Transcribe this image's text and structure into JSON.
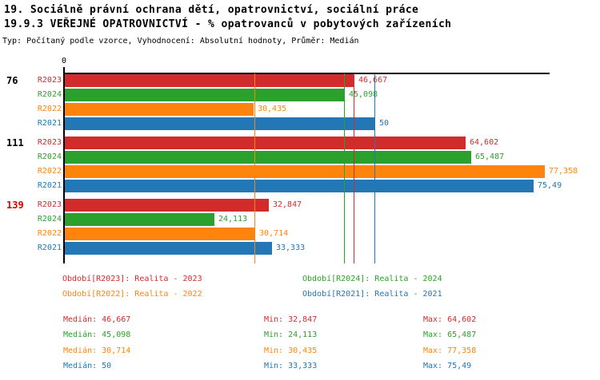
{
  "header": {
    "title_line1": "19. Sociálně právní ochrana dětí, opatrovnictví, sociální práce",
    "title_line2": "19.9.3 VEŘEJNÉ OPATROVNICTVÍ - % opatrovanců v pobytových zařízeních",
    "subtitle": "Typ: Počítaný podle vzorce, Vyhodnocení: Absolutní hodnoty, Průměr: Medián"
  },
  "colors": {
    "R2023": "#d22b2b",
    "R2024": "#2ca02c",
    "R2022": "#ff840e",
    "R2021": "#2277b4",
    "axis": "#000000",
    "group_label_default": "#000000",
    "group_label_highlight": "#dd0000"
  },
  "chart_data": {
    "type": "bar",
    "orientation": "horizontal",
    "title": "19.9.3 VEŘEJNÉ OPATROVNICTVÍ - % opatrovanců v pobytových zařízeních",
    "axis": {
      "origin_label": "0",
      "min": 0,
      "max": 78.2,
      "grid": false
    },
    "series_order": [
      "R2023",
      "R2024",
      "R2022",
      "R2021"
    ],
    "groups": [
      {
        "label": "76",
        "highlight": false,
        "bars": [
          {
            "series": "R2023",
            "value": 46.667,
            "label": "46,667"
          },
          {
            "series": "R2024",
            "value": 45.098,
            "label": "45,098"
          },
          {
            "series": "R2022",
            "value": 30.435,
            "label": "30,435"
          },
          {
            "series": "R2021",
            "value": 50,
            "label": "50"
          }
        ]
      },
      {
        "label": "111",
        "highlight": false,
        "bars": [
          {
            "series": "R2023",
            "value": 64.602,
            "label": "64,602"
          },
          {
            "series": "R2024",
            "value": 65.487,
            "label": "65,487"
          },
          {
            "series": "R2022",
            "value": 77.358,
            "label": "77,358"
          },
          {
            "series": "R2021",
            "value": 75.49,
            "label": "75,49"
          }
        ]
      },
      {
        "label": "139",
        "highlight": true,
        "bars": [
          {
            "series": "R2023",
            "value": 32.847,
            "label": "32,847"
          },
          {
            "series": "R2024",
            "value": 24.113,
            "label": "24,113"
          },
          {
            "series": "R2022",
            "value": 30.714,
            "label": "30,714"
          },
          {
            "series": "R2021",
            "value": 33.333,
            "label": "33,333"
          }
        ]
      }
    ],
    "median_lines": [
      {
        "series": "R2023",
        "value": 46.667
      },
      {
        "series": "R2024",
        "value": 45.098
      },
      {
        "series": "R2022",
        "value": 30.714
      },
      {
        "series": "R2021",
        "value": 50
      }
    ],
    "legend_position": "bottom"
  },
  "legend": [
    {
      "series": "R2023",
      "label": "Období[R2023]: Realita - 2023"
    },
    {
      "series": "R2024",
      "label": "Období[R2024]: Realita - 2024"
    },
    {
      "series": "R2022",
      "label": "Období[R2022]: Realita - 2022"
    },
    {
      "series": "R2021",
      "label": "Období[R2021]: Realita - 2021"
    }
  ],
  "stats": [
    {
      "series": "R2023",
      "median": "Medián: 46,667",
      "min": "Min: 32,847",
      "max": "Max: 64,602"
    },
    {
      "series": "R2024",
      "median": "Medián: 45,098",
      "min": "Min: 24,113",
      "max": "Max: 65,487"
    },
    {
      "series": "R2022",
      "median": "Medián: 30,714",
      "min": "Min: 30,435",
      "max": "Max: 77,358"
    },
    {
      "series": "R2021",
      "median": "Medián: 50",
      "min": "Min: 33,333",
      "max": "Max: 75,49"
    }
  ]
}
